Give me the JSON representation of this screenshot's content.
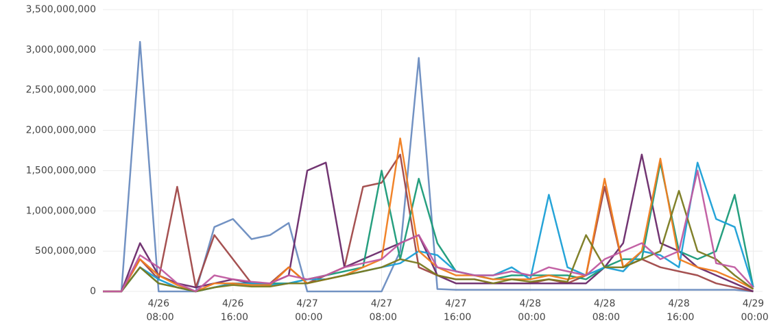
{
  "chart_data": {
    "type": "line",
    "x": [
      "4/26 02:00",
      "4/26 04:00",
      "4/26 06:00",
      "4/26 08:00",
      "4/26 10:00",
      "4/26 12:00",
      "4/26 14:00",
      "4/26 16:00",
      "4/26 18:00",
      "4/26 20:00",
      "4/26 22:00",
      "4/27 00:00",
      "4/27 02:00",
      "4/27 04:00",
      "4/27 06:00",
      "4/27 08:00",
      "4/27 10:00",
      "4/27 12:00",
      "4/27 14:00",
      "4/27 16:00",
      "4/27 18:00",
      "4/27 20:00",
      "4/27 22:00",
      "4/28 00:00",
      "4/28 02:00",
      "4/28 04:00",
      "4/28 06:00",
      "4/28 08:00",
      "4/28 10:00",
      "4/28 12:00",
      "4/28 14:00",
      "4/28 16:00",
      "4/28 18:00",
      "4/28 20:00",
      "4/28 22:00",
      "4/29 00:00"
    ],
    "series": [
      {
        "color": "#6a8cc0",
        "values": [
          0,
          0,
          3100000000,
          0,
          0,
          0,
          800000000,
          900000000,
          650000000,
          700000000,
          850000000,
          0,
          0,
          0,
          0,
          0,
          500000000,
          2900000000,
          30000000,
          20000000,
          20000000,
          20000000,
          20000000,
          20000000,
          20000000,
          20000000,
          20000000,
          20000000,
          20000000,
          20000000,
          20000000,
          20000000,
          20000000,
          20000000,
          20000000,
          0
        ]
      },
      {
        "color": "#a04848",
        "values": [
          0,
          0,
          400000000,
          150000000,
          1300000000,
          50000000,
          700000000,
          400000000,
          100000000,
          100000000,
          300000000,
          100000000,
          200000000,
          300000000,
          1300000000,
          1350000000,
          1700000000,
          300000000,
          200000000,
          150000000,
          150000000,
          100000000,
          100000000,
          100000000,
          150000000,
          100000000,
          200000000,
          1300000000,
          300000000,
          400000000,
          300000000,
          250000000,
          200000000,
          100000000,
          50000000,
          0
        ]
      },
      {
        "color": "#6a2a6a",
        "values": [
          0,
          0,
          600000000,
          200000000,
          100000000,
          50000000,
          100000000,
          150000000,
          100000000,
          100000000,
          200000000,
          1500000000,
          1600000000,
          300000000,
          400000000,
          500000000,
          600000000,
          700000000,
          200000000,
          100000000,
          100000000,
          100000000,
          100000000,
          100000000,
          100000000,
          100000000,
          100000000,
          300000000,
          600000000,
          1700000000,
          600000000,
          500000000,
          300000000,
          200000000,
          100000000,
          0
        ]
      },
      {
        "color": "#1a9a78",
        "values": [
          0,
          0,
          300000000,
          100000000,
          50000000,
          0,
          50000000,
          100000000,
          100000000,
          100000000,
          100000000,
          150000000,
          200000000,
          250000000,
          300000000,
          1500000000,
          400000000,
          1400000000,
          600000000,
          250000000,
          200000000,
          150000000,
          200000000,
          200000000,
          200000000,
          200000000,
          150000000,
          300000000,
          400000000,
          400000000,
          1600000000,
          500000000,
          400000000,
          500000000,
          1200000000,
          50000000
        ]
      },
      {
        "color": "#1a9fd6",
        "values": [
          0,
          0,
          300000000,
          150000000,
          50000000,
          0,
          50000000,
          100000000,
          100000000,
          80000000,
          100000000,
          150000000,
          150000000,
          200000000,
          250000000,
          300000000,
          350000000,
          500000000,
          450000000,
          250000000,
          200000000,
          200000000,
          300000000,
          150000000,
          1200000000,
          300000000,
          200000000,
          300000000,
          250000000,
          500000000,
          450000000,
          300000000,
          1600000000,
          900000000,
          800000000,
          50000000
        ]
      },
      {
        "color": "#f07d1f",
        "values": [
          0,
          0,
          400000000,
          200000000,
          80000000,
          0,
          100000000,
          100000000,
          80000000,
          80000000,
          300000000,
          100000000,
          150000000,
          200000000,
          300000000,
          400000000,
          1900000000,
          500000000,
          300000000,
          200000000,
          200000000,
          150000000,
          150000000,
          150000000,
          200000000,
          150000000,
          200000000,
          1400000000,
          300000000,
          500000000,
          1650000000,
          400000000,
          300000000,
          250000000,
          150000000,
          30000000
        ]
      },
      {
        "color": "#7a7a20",
        "values": [
          0,
          0,
          300000000,
          100000000,
          50000000,
          0,
          50000000,
          80000000,
          60000000,
          60000000,
          100000000,
          100000000,
          150000000,
          200000000,
          250000000,
          300000000,
          400000000,
          350000000,
          200000000,
          150000000,
          150000000,
          100000000,
          150000000,
          120000000,
          150000000,
          120000000,
          700000000,
          300000000,
          300000000,
          400000000,
          500000000,
          1250000000,
          500000000,
          400000000,
          200000000,
          30000000
        ]
      },
      {
        "color": "#c05aa0",
        "values": [
          0,
          0,
          450000000,
          300000000,
          100000000,
          0,
          200000000,
          150000000,
          120000000,
          100000000,
          200000000,
          150000000,
          200000000,
          300000000,
          350000000,
          400000000,
          600000000,
          700000000,
          300000000,
          250000000,
          200000000,
          200000000,
          250000000,
          200000000,
          300000000,
          250000000,
          200000000,
          400000000,
          500000000,
          600000000,
          400000000,
          500000000,
          1500000000,
          350000000,
          300000000,
          50000000
        ]
      }
    ],
    "xlim": [
      "4/26 02:00",
      "4/29 01:00"
    ],
    "xticks": [
      "4/26 08:00",
      "4/26 16:00",
      "4/27 00:00",
      "4/27 08:00",
      "4/27 16:00",
      "4/28 00:00",
      "4/28 08:00",
      "4/28 16:00",
      "4/29 00:00"
    ],
    "ylim": [
      0,
      3500000000
    ],
    "yticks": [
      0,
      {
        "value": 500000000,
        "label": "500,000,000"
      },
      {
        "value": 1000000000,
        "label": "1,000,000,000"
      },
      {
        "value": 1500000000,
        "label": "1,500,000,000"
      },
      {
        "value": 2000000000,
        "label": "2,000,000,000"
      },
      {
        "value": 2500000000,
        "label": "2,500,000,000"
      },
      {
        "value": 3000000000,
        "label": "3,000,000,000"
      },
      {
        "value": 3500000000,
        "label": "3,500,000,000"
      }
    ],
    "grid": true
  }
}
